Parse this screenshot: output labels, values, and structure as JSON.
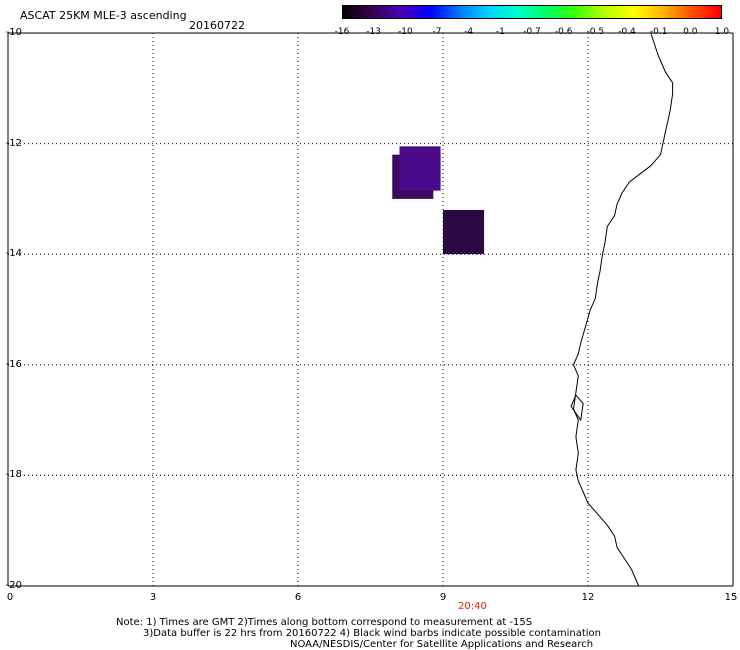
{
  "title": "ASCAT 25KM MLE-3 ascending",
  "date": "20160722",
  "colorbar": {
    "labels": [
      "-16",
      "-13",
      "-10",
      "-7",
      "-4",
      "-1",
      "-0.7",
      "-0.6",
      "-0.5",
      "-0.4",
      "-0.1",
      "0.0",
      "1.0"
    ],
    "gradient": [
      "#000000",
      "#3c0050",
      "#4b00b4",
      "#0000ff",
      "#0078ff",
      "#00d2ff",
      "#00ffc8",
      "#00ff64",
      "#3cff00",
      "#b4ff00",
      "#ffff00",
      "#ffb400",
      "#ff5000",
      "#ff0000"
    ]
  },
  "axes": {
    "x_labels": [
      "0",
      "3",
      "6",
      "9",
      "12",
      "15"
    ],
    "y_labels": [
      "-10",
      "-12",
      "-14",
      "-16",
      "-18",
      "-20"
    ],
    "x_range": [
      0,
      15
    ],
    "y_range": [
      -20,
      -10
    ]
  },
  "time_label": "20:40",
  "time_label_color": "#dd2200",
  "notes": {
    "line1": "Note: 1) Times are GMT 2)Times along bottom correspond to measurement at -15S",
    "line2": "3)Data buffer is 22 hrs from 20160722 4) Black wind barbs indicate possible contamination",
    "line3": "NOAA/NESDIS/Center for Satellite Applications and Research"
  },
  "data_cells": [
    {
      "lon": [
        7.95,
        8.8
      ],
      "lat": [
        -13.0,
        -12.2
      ],
      "color": "#3a0a5e"
    },
    {
      "lon": [
        8.1,
        8.95
      ],
      "lat": [
        -12.85,
        -12.05
      ],
      "color": "#4a0a8a"
    },
    {
      "lon": [
        9.0,
        9.85
      ],
      "lat": [
        -14.0,
        -13.2
      ],
      "color": "#2c0842"
    }
  ],
  "coastline": [
    [
      13.3,
      -10.0
    ],
    [
      13.45,
      -10.4
    ],
    [
      13.6,
      -10.7
    ],
    [
      13.75,
      -10.9
    ],
    [
      13.75,
      -11.1
    ],
    [
      13.7,
      -11.4
    ],
    [
      13.6,
      -11.8
    ],
    [
      13.5,
      -12.2
    ],
    [
      13.3,
      -12.4
    ],
    [
      13.0,
      -12.6
    ],
    [
      12.85,
      -12.7
    ],
    [
      12.7,
      -12.9
    ],
    [
      12.6,
      -13.1
    ],
    [
      12.55,
      -13.3
    ],
    [
      12.4,
      -13.5
    ],
    [
      12.35,
      -13.8
    ],
    [
      12.3,
      -14.0
    ],
    [
      12.25,
      -14.3
    ],
    [
      12.2,
      -14.5
    ],
    [
      12.15,
      -14.8
    ],
    [
      12.05,
      -15.0
    ],
    [
      11.95,
      -15.3
    ],
    [
      11.85,
      -15.6
    ],
    [
      11.8,
      -15.8
    ],
    [
      11.7,
      -16.0
    ],
    [
      11.8,
      -16.2
    ],
    [
      11.75,
      -16.5
    ],
    [
      11.7,
      -16.8
    ],
    [
      11.8,
      -17.0
    ],
    [
      11.75,
      -17.3
    ],
    [
      11.8,
      -17.6
    ],
    [
      11.75,
      -17.9
    ],
    [
      11.8,
      -18.1
    ],
    [
      11.9,
      -18.3
    ],
    [
      12.0,
      -18.5
    ],
    [
      12.2,
      -18.7
    ],
    [
      12.4,
      -18.9
    ],
    [
      12.55,
      -19.1
    ],
    [
      12.6,
      -19.3
    ],
    [
      12.75,
      -19.5
    ],
    [
      12.9,
      -19.7
    ],
    [
      13.0,
      -19.9
    ],
    [
      13.05,
      -20.0
    ]
  ]
}
